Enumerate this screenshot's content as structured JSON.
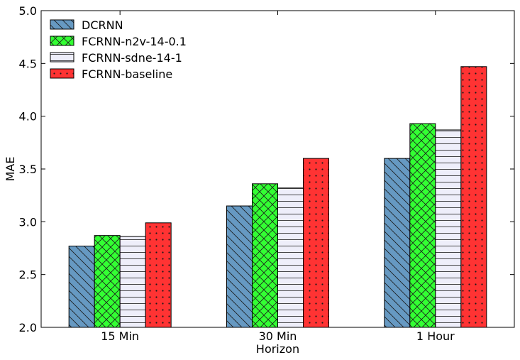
{
  "chart_data": {
    "type": "bar",
    "title": "",
    "xlabel": "Horizon",
    "ylabel": "MAE",
    "categories": [
      "15 Min",
      "30 Min",
      "1 Hour"
    ],
    "ylim": [
      2.0,
      5.0
    ],
    "yticks": [
      "2.0",
      "2.5",
      "3.0",
      "3.5",
      "4.0",
      "4.5",
      "5.0"
    ],
    "legend_position": "top-left",
    "grid": false,
    "series": [
      {
        "name": "DCRNN",
        "values": [
          2.77,
          3.15,
          3.6
        ],
        "color": "#6699c2",
        "hatch": "backslash"
      },
      {
        "name": "FCRNN-n2v-14-0.1",
        "values": [
          2.87,
          3.36,
          3.93
        ],
        "color": "#33ff33",
        "hatch": "cross"
      },
      {
        "name": "FCRNN-sdne-14-1",
        "values": [
          2.86,
          3.32,
          3.87
        ],
        "color": "#eeeefa",
        "hatch": "horizontal"
      },
      {
        "name": "FCRNN-baseline",
        "values": [
          2.99,
          3.6,
          4.47
        ],
        "color": "#ff3333",
        "hatch": "dots"
      }
    ]
  }
}
